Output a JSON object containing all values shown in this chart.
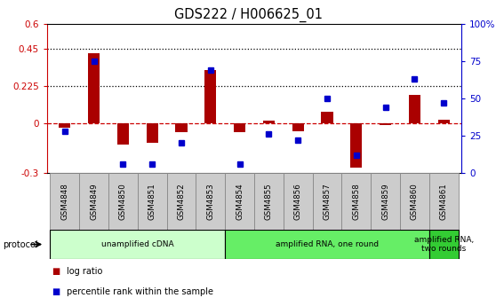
{
  "title": "GDS222 / H006625_01",
  "samples": [
    "GSM4848",
    "GSM4849",
    "GSM4850",
    "GSM4851",
    "GSM4852",
    "GSM4853",
    "GSM4854",
    "GSM4855",
    "GSM4856",
    "GSM4857",
    "GSM4858",
    "GSM4859",
    "GSM4860",
    "GSM4861"
  ],
  "log_ratio": [
    -0.03,
    0.42,
    -0.13,
    -0.12,
    -0.055,
    0.32,
    -0.055,
    0.015,
    -0.05,
    0.07,
    -0.27,
    -0.01,
    0.17,
    0.02
  ],
  "percentile_rank": [
    28,
    75,
    6,
    6,
    20,
    69,
    6,
    26,
    22,
    50,
    12,
    44,
    63,
    47
  ],
  "bar_color": "#aa0000",
  "dot_color": "#0000cc",
  "ylim_left": [
    -0.3,
    0.6
  ],
  "ylim_right": [
    0,
    100
  ],
  "yticks_left": [
    -0.3,
    0.0,
    0.225,
    0.45,
    0.6
  ],
  "yticks_left_labels": [
    "-0.3",
    "0",
    "0.225",
    "0.45",
    "0.6"
  ],
  "yticks_right": [
    0,
    25,
    50,
    75,
    100
  ],
  "yticks_right_labels": [
    "0",
    "25",
    "50",
    "75",
    "100%"
  ],
  "hlines": [
    0.225,
    0.45
  ],
  "zero_line_color": "#cc0000",
  "dotted_line_color": "#000000",
  "protocol_groups": [
    {
      "label": "unamplified cDNA",
      "start": 0,
      "end": 5,
      "color": "#ccffcc"
    },
    {
      "label": "amplified RNA, one round",
      "start": 6,
      "end": 12,
      "color": "#66ee66"
    },
    {
      "label": "amplified RNA,\ntwo rounds",
      "start": 13,
      "end": 13,
      "color": "#33cc33"
    }
  ],
  "legend_items": [
    {
      "label": "log ratio",
      "color": "#aa0000"
    },
    {
      "label": "percentile rank within the sample",
      "color": "#0000cc"
    }
  ],
  "background_color": "#ffffff",
  "tick_color_left": "#cc0000",
  "tick_color_right": "#0000cc",
  "protocol_label": "protocol",
  "xtick_bg": "#cccccc"
}
